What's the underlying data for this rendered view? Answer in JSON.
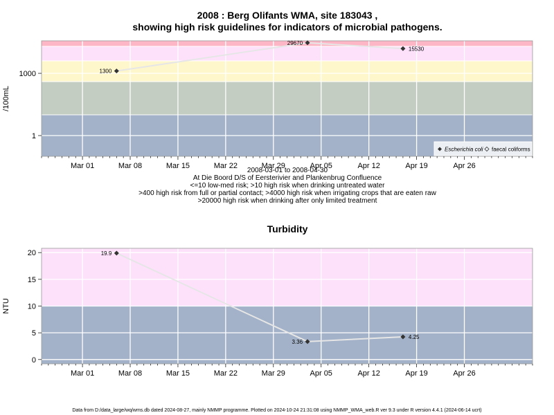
{
  "chart_data": [
    {
      "type": "line",
      "title_line1": "2008 : Berg Olifants WMA, site 183043 ,",
      "title_line2": "showing high risk guidelines for indicators of microbial pathogens.",
      "ylabel": "/100mL",
      "yscale": "log",
      "ylim": [
        0.1,
        37000
      ],
      "yticks": [
        1,
        1000
      ],
      "ytick_labels": [
        "1",
        "1000"
      ],
      "xlim": [
        "2008-02-24",
        "2008-05-06"
      ],
      "xticks": [
        "2008-03-01",
        "2008-03-08",
        "2008-03-15",
        "2008-03-22",
        "2008-03-29",
        "2008-04-05",
        "2008-04-12",
        "2008-04-19",
        "2008-04-26"
      ],
      "xtick_labels": [
        "Mar 01",
        "Mar 08",
        "Mar 15",
        "Mar 22",
        "Mar 29",
        "Apr 05",
        "Apr 12",
        "Apr 19",
        "Apr 26"
      ],
      "bands": [
        {
          "from": 0.1,
          "to": 10,
          "color": "#a3b2c8"
        },
        {
          "from": 10,
          "to": 400,
          "color": "#c3cdc2"
        },
        {
          "from": 400,
          "to": 4000,
          "color": "#fff7cc"
        },
        {
          "from": 4000,
          "to": 20000,
          "color": "#fde1fb"
        },
        {
          "from": 20000,
          "to": 37000,
          "color": "#fdb6c5"
        }
      ],
      "series": [
        {
          "name": "Escherichia coli",
          "color": "#e6e6e6",
          "marker_color": "#333333",
          "points": [
            {
              "x": "2008-03-06",
              "y": 1300,
              "label": "1300"
            },
            {
              "x": "2008-04-03",
              "y": 29670,
              "label": "29670"
            },
            {
              "x": "2008-04-17",
              "y": 15530,
              "label": "15530"
            }
          ]
        }
      ],
      "legend": {
        "position": "bottom-right",
        "entries": [
          {
            "label": "Escherichia coli",
            "marker": "filled-diamond",
            "italic": true
          },
          {
            "label": "faecal coliforms",
            "marker": "open-diamond",
            "italic": false
          }
        ]
      },
      "subtitle_lines": [
        "2008-03-01 to 2008-04-30",
        "At Die Boord D/S of Eersterivier and Plankenbrug Confluence",
        "<=10 low-med risk; >10 high risk when drinking untreated water",
        ">400 high risk from full or partial contact; >4000 high risk when irrigating crops that are eaten raw",
        ">20000 high risk when drinking after only limited treatment"
      ]
    },
    {
      "type": "line",
      "title": "Turbidity",
      "ylabel": "NTU",
      "yscale": "linear",
      "ylim": [
        -0.8,
        20.8
      ],
      "yticks": [
        0,
        5,
        10,
        15,
        20
      ],
      "ytick_labels": [
        "0",
        "5",
        "10",
        "15",
        "20"
      ],
      "xlim": [
        "2008-02-24",
        "2008-05-06"
      ],
      "xticks": [
        "2008-03-01",
        "2008-03-08",
        "2008-03-15",
        "2008-03-22",
        "2008-03-29",
        "2008-04-05",
        "2008-04-12",
        "2008-04-19",
        "2008-04-26"
      ],
      "xtick_labels": [
        "Mar 01",
        "Mar 08",
        "Mar 15",
        "Mar 22",
        "Mar 29",
        "Apr 05",
        "Apr 12",
        "Apr 19",
        "Apr 26"
      ],
      "bands": [
        {
          "from": -0.8,
          "to": 10,
          "color": "#a3b2c8"
        },
        {
          "from": 10,
          "to": 20.8,
          "color": "#fde1fb"
        }
      ],
      "series": [
        {
          "name": "Turbidity",
          "color": "#e6e6e6",
          "marker_color": "#333333",
          "points": [
            {
              "x": "2008-03-06",
              "y": 19.9,
              "label": "19.9"
            },
            {
              "x": "2008-04-03",
              "y": 3.36,
              "label": "3.36"
            },
            {
              "x": "2008-04-17",
              "y": 4.25,
              "label": "4.25"
            }
          ]
        }
      ]
    }
  ],
  "footer": "Data from D:/data_large/wq/wms.db dated 2024-08-27, mainly NMMP programme. Plotted on 2024-10-24 21:31:08 using NMMP_WMA_web.R ver 9.3 under R version 4.4.1 (2024-06-14 ucrt)"
}
